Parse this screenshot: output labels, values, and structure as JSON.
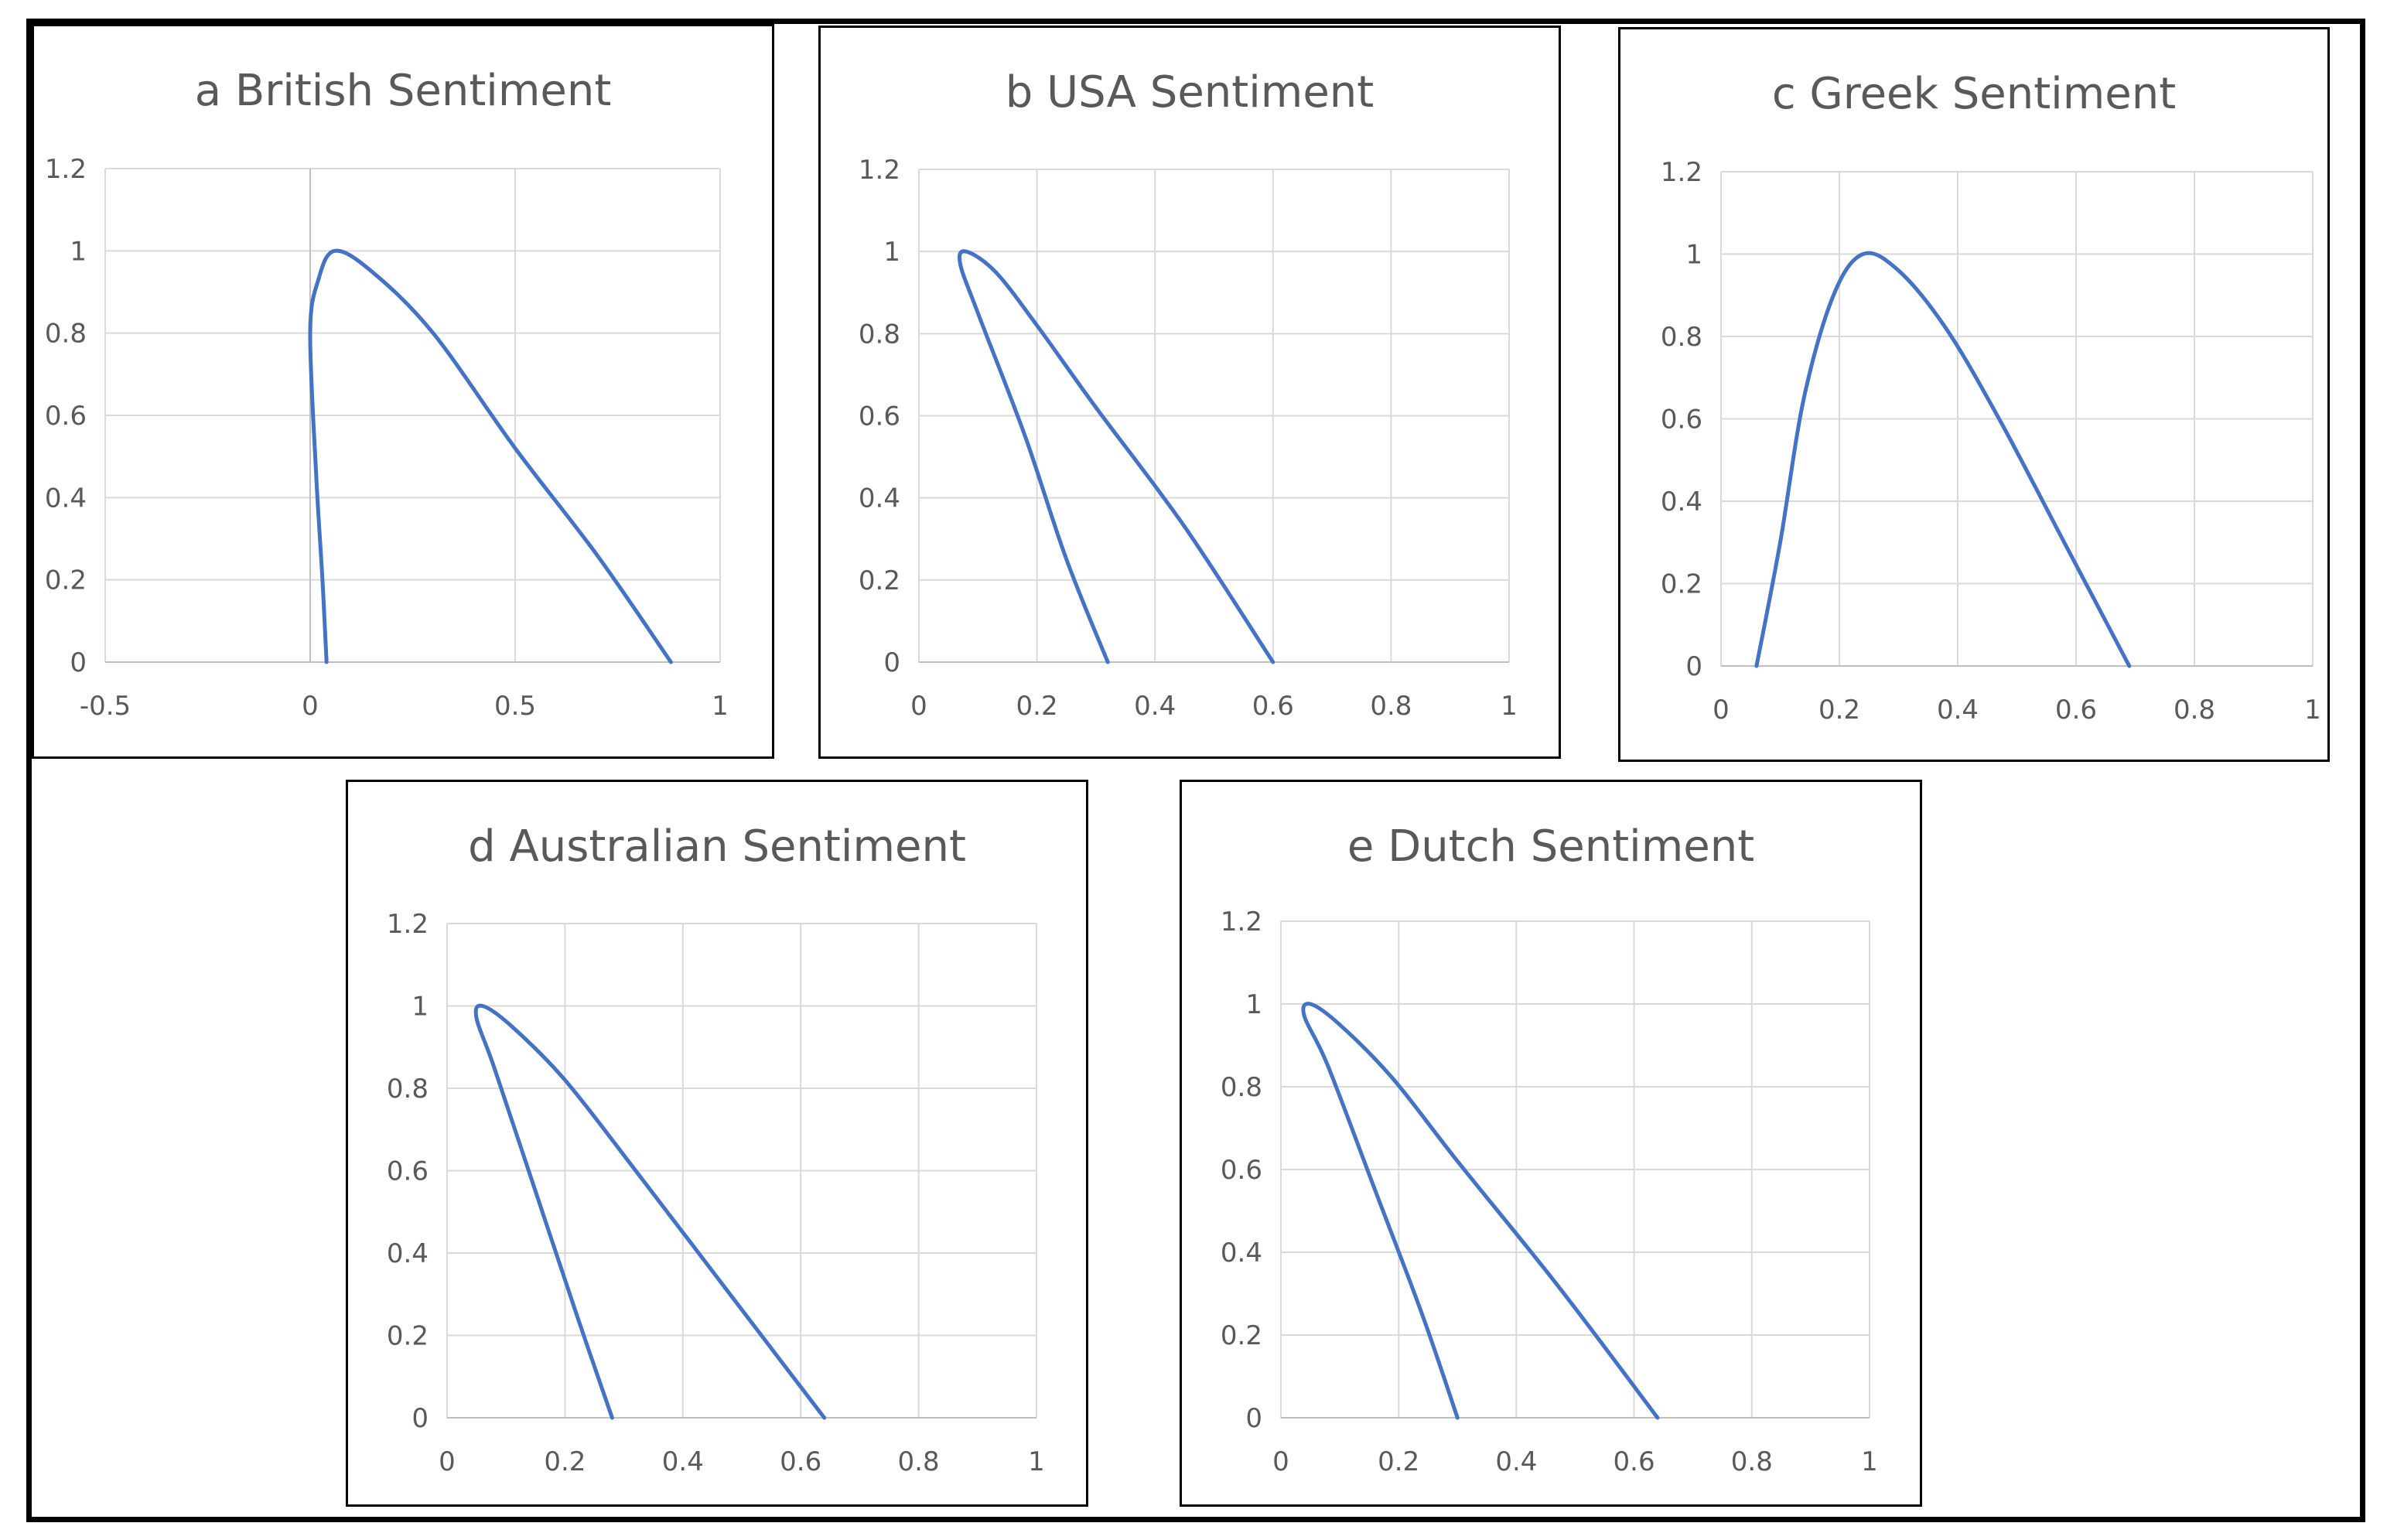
{
  "accent_color": "#4472c4",
  "chart_data": [
    {
      "type": "line",
      "title": "a British Sentiment",
      "xlim": [
        -0.5,
        1
      ],
      "ylim": [
        0,
        1.2
      ],
      "xticks": [
        "-0.5",
        "0",
        "0.5",
        "1"
      ],
      "yticks": [
        "0",
        "0.2",
        "0.4",
        "0.6",
        "0.8",
        "1",
        "1.2"
      ],
      "grid": true,
      "series": [
        {
          "color": "#4472c4",
          "points": [
            [
              0.04,
              0
            ],
            [
              0.03,
              0.2
            ],
            [
              0.015,
              0.45
            ],
            [
              0.0,
              0.8
            ],
            [
              0.02,
              0.93
            ],
            [
              0.06,
              1.0
            ],
            [
              0.15,
              0.95
            ],
            [
              0.3,
              0.8
            ],
            [
              0.5,
              0.52
            ],
            [
              0.7,
              0.26
            ],
            [
              0.88,
              0
            ]
          ]
        }
      ]
    },
    {
      "type": "line",
      "title": "b USA Sentiment",
      "xlim": [
        0,
        1
      ],
      "ylim": [
        0,
        1.2
      ],
      "xticks": [
        "0",
        "0.2",
        "0.4",
        "0.6",
        "0.8",
        "1"
      ],
      "yticks": [
        "0",
        "0.2",
        "0.4",
        "0.6",
        "0.8",
        "1",
        "1.2"
      ],
      "grid": true,
      "series": [
        {
          "color": "#4472c4",
          "points": [
            [
              0.32,
              0
            ],
            [
              0.25,
              0.25
            ],
            [
              0.18,
              0.55
            ],
            [
              0.1,
              0.85
            ],
            [
              0.07,
              0.97
            ],
            [
              0.08,
              1.0
            ],
            [
              0.13,
              0.95
            ],
            [
              0.2,
              0.82
            ],
            [
              0.3,
              0.62
            ],
            [
              0.45,
              0.33
            ],
            [
              0.6,
              0
            ]
          ]
        }
      ]
    },
    {
      "type": "line",
      "title": "c Greek Sentiment",
      "xlim": [
        0,
        1
      ],
      "ylim": [
        0,
        1.2
      ],
      "xticks": [
        "0",
        "0.2",
        "0.4",
        "0.6",
        "0.8",
        "1"
      ],
      "yticks": [
        "0",
        "0.2",
        "0.4",
        "0.6",
        "0.8",
        "1",
        "1.2"
      ],
      "grid": true,
      "series": [
        {
          "color": "#4472c4",
          "points": [
            [
              0.06,
              0
            ],
            [
              0.1,
              0.3
            ],
            [
              0.14,
              0.65
            ],
            [
              0.19,
              0.9
            ],
            [
              0.24,
              1.0
            ],
            [
              0.3,
              0.96
            ],
            [
              0.38,
              0.82
            ],
            [
              0.47,
              0.6
            ],
            [
              0.58,
              0.3
            ],
            [
              0.69,
              0
            ]
          ]
        }
      ]
    },
    {
      "type": "line",
      "title": "d Australian Sentiment",
      "xlim": [
        0,
        1
      ],
      "ylim": [
        0,
        1.2
      ],
      "xticks": [
        "0",
        "0.2",
        "0.4",
        "0.6",
        "0.8",
        "1"
      ],
      "yticks": [
        "0",
        "0.2",
        "0.4",
        "0.6",
        "0.8",
        "1",
        "1.2"
      ],
      "grid": true,
      "series": [
        {
          "color": "#4472c4",
          "points": [
            [
              0.28,
              0
            ],
            [
              0.22,
              0.25
            ],
            [
              0.15,
              0.55
            ],
            [
              0.08,
              0.85
            ],
            [
              0.05,
              0.97
            ],
            [
              0.06,
              1.0
            ],
            [
              0.11,
              0.95
            ],
            [
              0.2,
              0.82
            ],
            [
              0.32,
              0.6
            ],
            [
              0.48,
              0.3
            ],
            [
              0.64,
              0
            ]
          ]
        }
      ]
    },
    {
      "type": "line",
      "title": "e Dutch Sentiment",
      "xlim": [
        0,
        1
      ],
      "ylim": [
        0,
        1.2
      ],
      "xticks": [
        "0",
        "0.2",
        "0.4",
        "0.6",
        "0.8",
        "1"
      ],
      "yticks": [
        "0",
        "0.2",
        "0.4",
        "0.6",
        "0.8",
        "1",
        "1.2"
      ],
      "grid": true,
      "series": [
        {
          "color": "#4472c4",
          "points": [
            [
              0.3,
              0
            ],
            [
              0.24,
              0.25
            ],
            [
              0.16,
              0.55
            ],
            [
              0.08,
              0.85
            ],
            [
              0.04,
              0.97
            ],
            [
              0.05,
              1.0
            ],
            [
              0.1,
              0.95
            ],
            [
              0.19,
              0.82
            ],
            [
              0.3,
              0.62
            ],
            [
              0.47,
              0.32
            ],
            [
              0.64,
              0
            ]
          ]
        }
      ]
    }
  ]
}
